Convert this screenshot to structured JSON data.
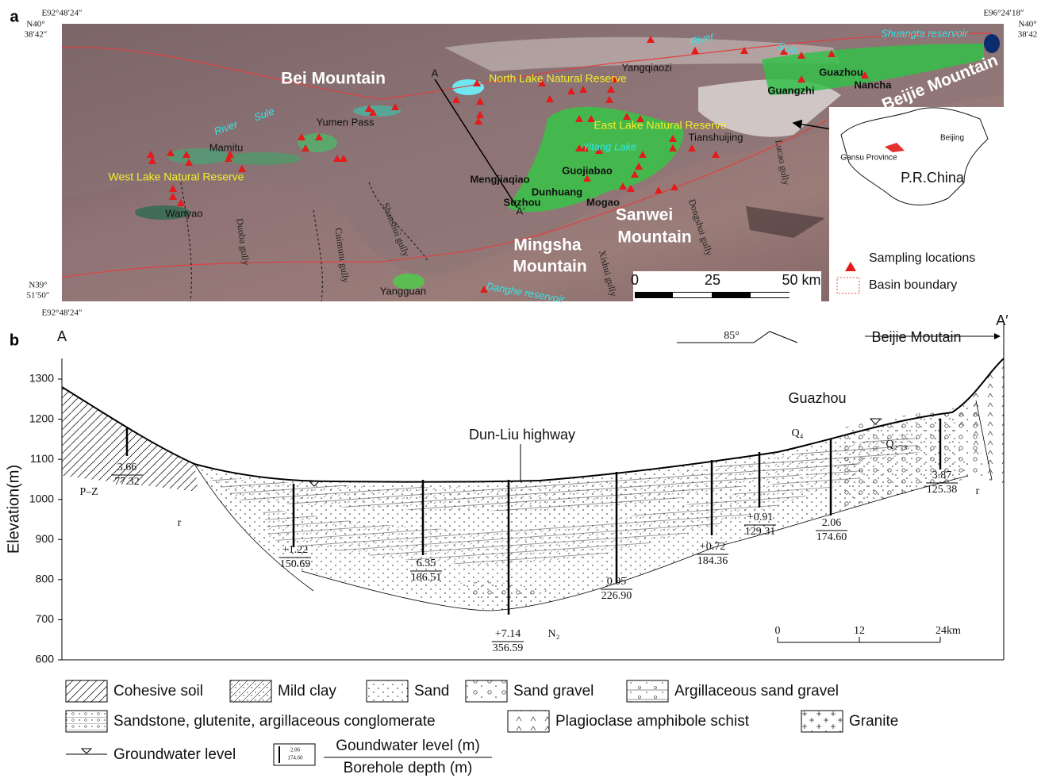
{
  "panel_a": {
    "label": "a",
    "coords": {
      "top_left_lon": "E92°48′24″",
      "top_left_lat_deg": "N40°",
      "top_left_lat_min": "38′42″",
      "top_right_lon": "E96°24′18″",
      "top_right_lat_deg": "N40°",
      "top_right_lat_min": "38′42",
      "bottom_left_lat_deg": "N39°",
      "bottom_left_lat_min": "51′50″",
      "bottom_left_lon": "E92°48′24″"
    },
    "places": [
      "Bei Mountain",
      "North Lake Natural Reserve",
      "Yangqiaozi",
      "River",
      "Sule",
      "Shuangta reservoir",
      "Guazhou",
      "Guangzhi",
      "Nancha",
      "Beijie Mountain",
      "East Lake Natural Reserve",
      "Tianshuijing",
      "Yitang Lake",
      "Lucao gully",
      "Yumen Pass",
      "River",
      "Sule",
      "Mamitu",
      "West Lake Natural Reserve",
      "Wanyao",
      "Shanshui gully",
      "Duoba gully",
      "Cuimutu gully",
      "Mengjiaqiao",
      "Guojiabao",
      "Dunhuang",
      "Suzhou",
      "Mogao",
      "Sanwei",
      "Mountain",
      "Mingsha",
      "Mountain",
      "Xishui gully",
      "Dongshui gully",
      "Yangguan",
      "Danghe reservoir"
    ],
    "section_ends": [
      "A",
      "A′"
    ],
    "scale_bar": [
      "0",
      "25",
      "50 km"
    ],
    "inset": [
      "Beijing",
      "Gansu Province",
      "P.R.China"
    ],
    "legend": [
      "Sampling locations",
      "Basin boundary"
    ]
  },
  "panel_b": {
    "label": "b",
    "section_ends": [
      "A",
      "A′"
    ],
    "direction": "Beijie Moutain",
    "dip": "85°",
    "places": [
      "Guazhou",
      "Dun-Liu highway"
    ],
    "units": [
      "Q₄",
      "Q₂₋₃",
      "P–Z",
      "r",
      "r",
      "N₂"
    ],
    "elevation_axis": {
      "label": "Elevation(m)",
      "ticks": [
        600,
        700,
        800,
        900,
        1000,
        1100,
        1200,
        1300
      ]
    },
    "boreholes": [
      {
        "level": "3.66",
        "depth": "77.32"
      },
      {
        "level": "+1.22",
        "depth": "150.69"
      },
      {
        "level": "6.35",
        "depth": "186.51"
      },
      {
        "level": "+7.14",
        "depth": "356.59"
      },
      {
        "level": "0.95",
        "depth": "226.90"
      },
      {
        "level": "+0.72",
        "depth": "184.36"
      },
      {
        "level": "+0.91",
        "depth": "129.31"
      },
      {
        "level": "2.06",
        "depth": "174.60"
      },
      {
        "level": "3.87",
        "depth": "125.38"
      }
    ],
    "scale_bar": [
      "0",
      "12",
      "24km"
    ],
    "legend": {
      "items": [
        "Cohesive soil",
        "Mild clay",
        "Sand",
        "Sand gravel",
        "Argillaceous sand gravel",
        "Sandstone, glutenite, argillaceous conglomerate",
        "Plagioclase amphibole schist",
        "Granite",
        "Groundwater level"
      ],
      "borehole_key": {
        "level": "2.06",
        "depth": "174.60"
      },
      "borehole_title": "Goundwater level (m)",
      "borehole_subtitle": "Borehole depth (m)"
    }
  }
}
